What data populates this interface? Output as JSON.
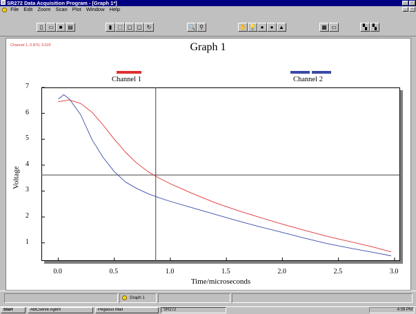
{
  "window": {
    "title": "SR272 Data Acquisition Program - [Graph 1*]",
    "controls": [
      "_",
      "▫"
    ]
  },
  "menu": {
    "items": [
      "File",
      "Edit",
      "Zoom",
      "Scan",
      "Plot",
      "Window",
      "Help"
    ]
  },
  "toolbar": {
    "buttons": [
      {
        "name": "new-icon",
        "glyph": "▯"
      },
      {
        "name": "open-icon",
        "glyph": "▭"
      },
      {
        "name": "save-icon",
        "glyph": "■"
      },
      {
        "name": "print-icon",
        "glyph": "▤"
      },
      {
        "name": "chart-icon",
        "glyph": "▮"
      },
      {
        "name": "select-icon",
        "glyph": "⬚"
      },
      {
        "name": "zoom-box-icon",
        "glyph": "▢"
      },
      {
        "name": "zoom-prev-icon",
        "glyph": "▢"
      },
      {
        "name": "refresh-icon",
        "glyph": "↻"
      },
      {
        "name": "zoom-in-icon",
        "glyph": "🔍"
      },
      {
        "name": "zoom-out-icon",
        "glyph": "⚲"
      },
      {
        "name": "hand-icon",
        "glyph": "✋"
      },
      {
        "name": "bulb-icon",
        "glyph": "💡"
      },
      {
        "name": "run-icon",
        "glyph": "●"
      },
      {
        "name": "stop-icon",
        "glyph": "●"
      },
      {
        "name": "up-icon",
        "glyph": "▲"
      },
      {
        "name": "grid-icon",
        "glyph": "▦"
      },
      {
        "name": "window-icon",
        "glyph": "▭"
      },
      {
        "name": "axes-icon",
        "glyph": "▚"
      },
      {
        "name": "trace-icon",
        "glyph": "▚"
      }
    ]
  },
  "readout": "Channel 1, 0.870, 3.620",
  "chart_data": {
    "type": "line",
    "title": "Graph 1",
    "xlabel": "Time/microseconds",
    "ylabel": "Voltage",
    "xlim": [
      -0.15,
      3.05
    ],
    "ylim": [
      0.3,
      7.0
    ],
    "xticks": [
      0.0,
      0.5,
      1.0,
      1.5,
      2.0,
      2.5,
      3.0
    ],
    "xtick_labels": [
      "0.0",
      "0.5",
      "1.0",
      "1.5",
      "2.0",
      "2.5",
      "3.0"
    ],
    "yticks": [
      1,
      2,
      3,
      4,
      5,
      6,
      7
    ],
    "ytick_labels": [
      "1",
      "2",
      "3",
      "4",
      "5",
      "6",
      "7"
    ],
    "cursor": {
      "x": 0.87,
      "y": 3.62
    },
    "legend_placement": "top",
    "series": [
      {
        "name": "Channel 1",
        "color": "#e03030",
        "x": [
          0.0,
          0.1,
          0.2,
          0.3,
          0.4,
          0.5,
          0.6,
          0.7,
          0.8,
          0.9,
          1.0,
          1.2,
          1.4,
          1.6,
          1.8,
          2.0,
          2.2,
          2.4,
          2.6,
          2.8,
          2.97
        ],
        "y": [
          6.45,
          6.52,
          6.38,
          6.05,
          5.55,
          5.0,
          4.5,
          4.08,
          3.75,
          3.5,
          3.28,
          2.9,
          2.55,
          2.25,
          1.98,
          1.72,
          1.48,
          1.25,
          1.05,
          0.85,
          0.65
        ]
      },
      {
        "name": "Channel 2",
        "color": "#3a4aa8",
        "x": [
          0.0,
          0.05,
          0.1,
          0.2,
          0.3,
          0.4,
          0.5,
          0.6,
          0.7,
          0.8,
          0.9,
          1.0,
          1.2,
          1.4,
          1.6,
          1.8,
          2.0,
          2.2,
          2.4,
          2.6,
          2.8,
          2.97
        ],
        "y": [
          6.55,
          6.72,
          6.55,
          5.95,
          5.0,
          4.3,
          3.75,
          3.35,
          3.1,
          2.9,
          2.74,
          2.6,
          2.35,
          2.1,
          1.85,
          1.62,
          1.4,
          1.18,
          0.97,
          0.8,
          0.64,
          0.5
        ]
      }
    ]
  },
  "status": {
    "graph_tab": "Graph 1"
  },
  "taskbar": {
    "start": "Start",
    "tasks": [
      "ABCserve Agent",
      "Pegasus Mail",
      "SR272"
    ],
    "clock": "4:09 PM"
  }
}
